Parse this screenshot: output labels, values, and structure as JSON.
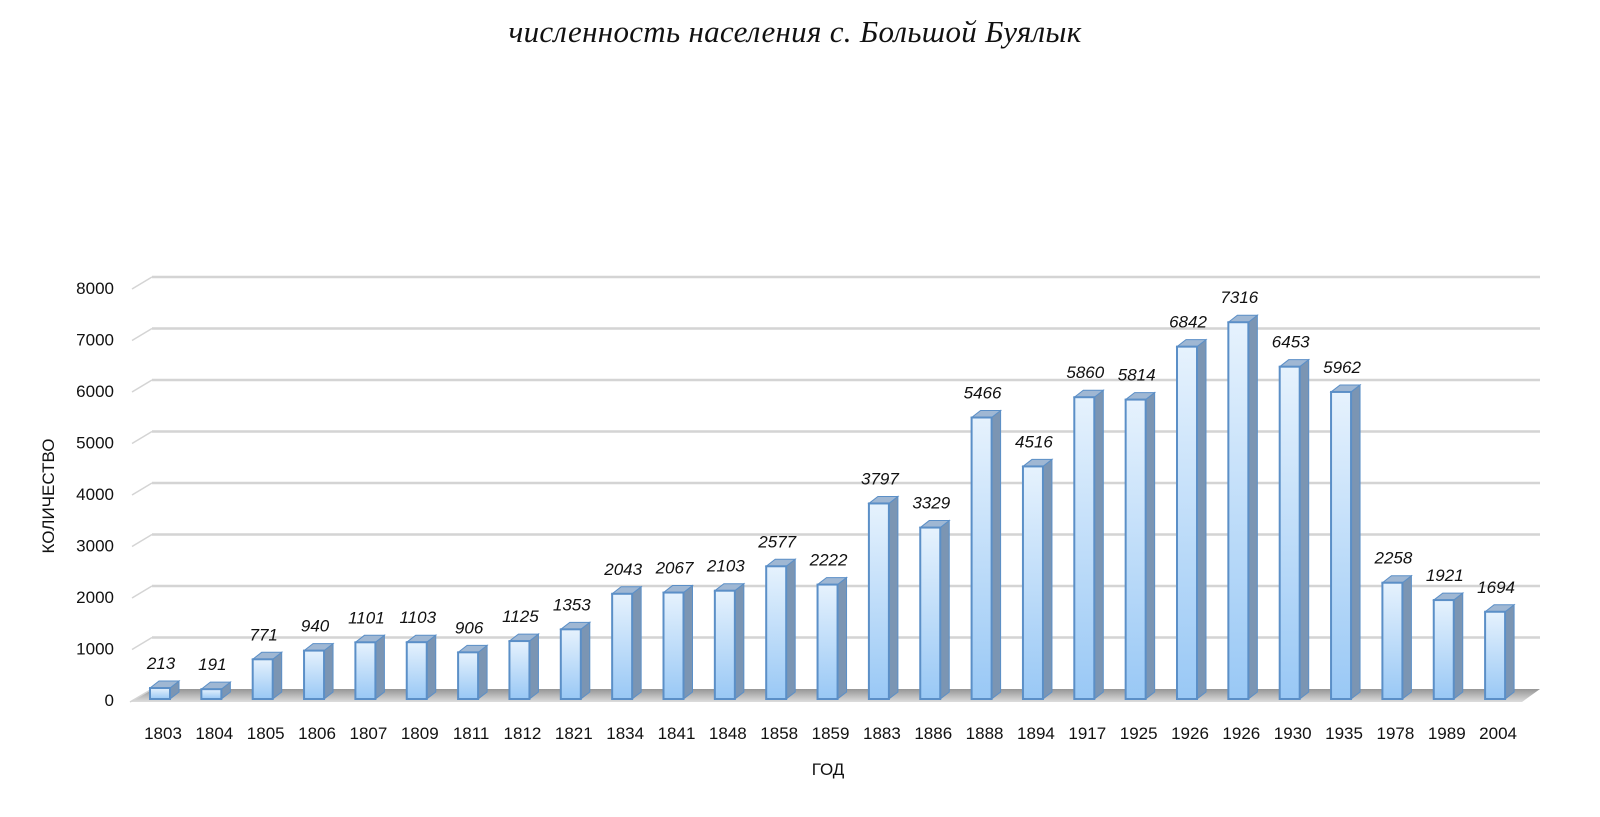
{
  "chart_data": {
    "type": "bar",
    "title": "численность населения с. Большой Буялык",
    "xlabel": "ГОД",
    "ylabel": "КОЛИЧЕСТВО",
    "ylim": [
      0,
      8000
    ],
    "yticks": [
      0,
      1000,
      2000,
      3000,
      4000,
      5000,
      6000,
      7000,
      8000
    ],
    "grid": true,
    "legend": null,
    "style": "3d-column",
    "bar_color": "#9dc3e6",
    "bar_edge_color": "#5b8fc7",
    "categories": [
      "1803",
      "1804",
      "1805",
      "1806",
      "1807",
      "1809",
      "1811",
      "1812",
      "1821",
      "1834",
      "1841",
      "1848",
      "1858",
      "1859",
      "1883",
      "1886",
      "1888",
      "1894",
      "1917",
      "1925",
      "1926",
      "1926",
      "1930",
      "1935",
      "1978",
      "1989",
      "2004"
    ],
    "values": [
      213,
      191,
      771,
      940,
      1101,
      1103,
      906,
      1125,
      1353,
      2043,
      2067,
      2103,
      2577,
      2222,
      3797,
      3329,
      5466,
      4516,
      5860,
      5814,
      6842,
      7316,
      6453,
      5962,
      2258,
      1921,
      1694
    ]
  }
}
